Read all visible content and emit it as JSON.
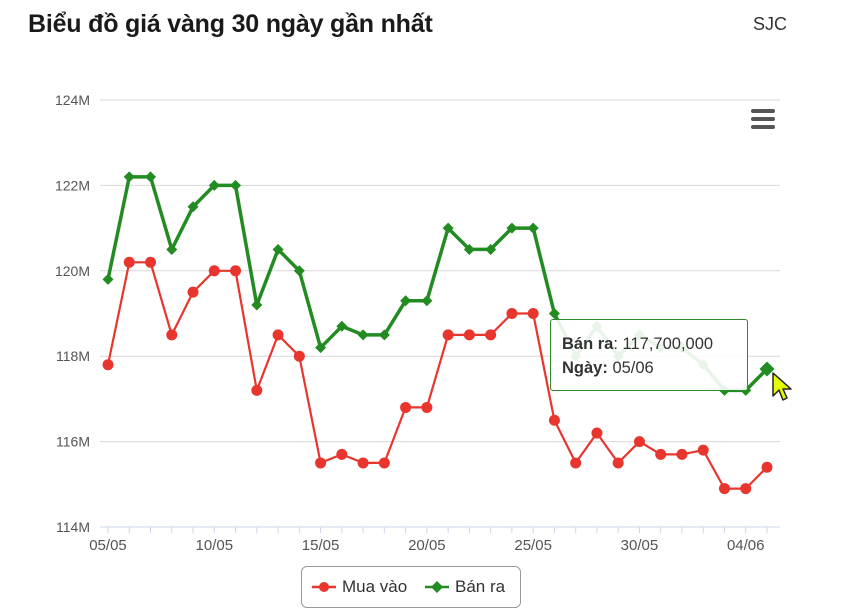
{
  "header": {
    "title": "Biểu đồ giá vàng 30 ngày gần nhất",
    "brand": "SJC"
  },
  "menu": {
    "icon": "hamburger-menu-icon"
  },
  "tooltip": {
    "series_label": "Bán ra",
    "series_value": "117,700,000",
    "date_label": "Ngày:",
    "date_value": "05/06"
  },
  "colors": {
    "buy": "#e8352e",
    "sell": "#228b22",
    "grid": "#d8d8d8",
    "axis": "#ccd6eb"
  },
  "chart_data": {
    "type": "line",
    "title": "Biểu đồ giá vàng 30 ngày gần nhất",
    "xlabel": "",
    "ylabel": "",
    "x": [
      "05/05",
      "06/05",
      "07/05",
      "08/05",
      "09/05",
      "10/05",
      "11/05",
      "12/05",
      "13/05",
      "14/05",
      "15/05",
      "16/05",
      "17/05",
      "18/05",
      "19/05",
      "20/05",
      "21/05",
      "22/05",
      "23/05",
      "24/05",
      "25/05",
      "26/05",
      "27/05",
      "28/05",
      "29/05",
      "30/05",
      "31/05",
      "01/06",
      "02/06",
      "03/06",
      "04/06",
      "05/06"
    ],
    "x_ticks": [
      "05/05",
      "10/05",
      "15/05",
      "20/05",
      "25/05",
      "30/05",
      "04/06"
    ],
    "y_ticks": [
      "114M",
      "116M",
      "118M",
      "120M",
      "122M",
      "124M"
    ],
    "ylim": [
      114000000,
      124000000
    ],
    "grid": true,
    "legend_position": "bottom-center",
    "series": [
      {
        "name": "Mua vào",
        "marker": "circle",
        "values": [
          117800000,
          120200000,
          120200000,
          118500000,
          119500000,
          120000000,
          120000000,
          117200000,
          118500000,
          118000000,
          115500000,
          115700000,
          115500000,
          115500000,
          116800000,
          116800000,
          118500000,
          118500000,
          118500000,
          119000000,
          119000000,
          116500000,
          115500000,
          116200000,
          115500000,
          116000000,
          115700000,
          115700000,
          115800000,
          114900000,
          114900000,
          115400000
        ]
      },
      {
        "name": "Bán ra",
        "marker": "diamond",
        "values": [
          119800000,
          122200000,
          122200000,
          120500000,
          121500000,
          122000000,
          122000000,
          119200000,
          120500000,
          120000000,
          118200000,
          118700000,
          118500000,
          118500000,
          119300000,
          119300000,
          121000000,
          120500000,
          120500000,
          121000000,
          121000000,
          119000000,
          118000000,
          118700000,
          118000000,
          118500000,
          118200000,
          118200000,
          117800000,
          117200000,
          117200000,
          117700000
        ]
      }
    ]
  }
}
